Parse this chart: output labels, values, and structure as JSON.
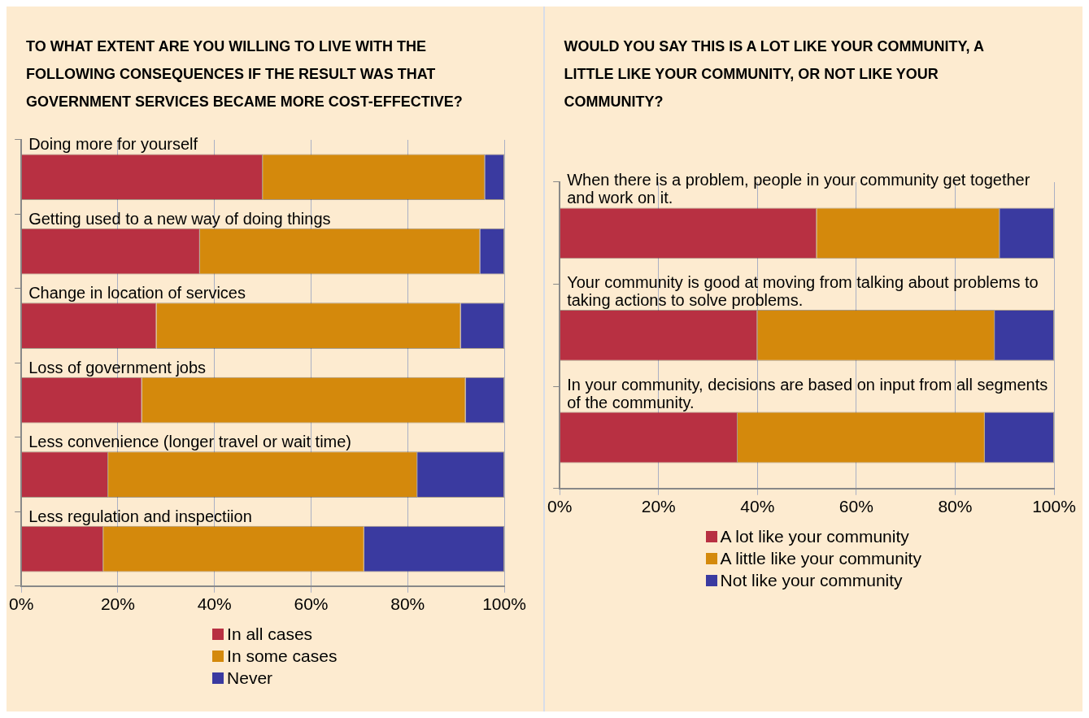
{
  "chart_data": [
    {
      "type": "bar",
      "orientation": "horizontal",
      "stacked": true,
      "title": "TO WHAT EXTENT ARE YOU WILLING TO LIVE WITH THE FOLLOWING CONSEQUENCES IF THE RESULT WAS THAT GOVERNMENT SERVICES BECAME MORE COST-EFFECTIVE?",
      "categories": [
        "Doing more for yourself",
        "Getting used to a new way of doing things",
        "Change in location of services",
        "Loss of government jobs",
        "Less convenience (longer travel or wait time)",
        "Less regulation and inspectiion"
      ],
      "series": [
        {
          "name": "In all cases",
          "color": "#b83042",
          "values": [
            50,
            37,
            28,
            25,
            18,
            17
          ]
        },
        {
          "name": "In some cases",
          "color": "#d4890c",
          "values": [
            46,
            58,
            63,
            67,
            64,
            54
          ]
        },
        {
          "name": "Never",
          "color": "#3a3aa0",
          "values": [
            4,
            5,
            9,
            8,
            18,
            29
          ]
        }
      ],
      "xlim": [
        0,
        100
      ],
      "xticks": [
        {
          "value": 0,
          "label": "0%"
        },
        {
          "value": 20,
          "label": "20%"
        },
        {
          "value": 40,
          "label": "40%"
        },
        {
          "value": 60,
          "label": "60%"
        },
        {
          "value": 80,
          "label": "80%"
        },
        {
          "value": 100,
          "label": "100%"
        }
      ],
      "grid": "x",
      "legend": "bottom"
    },
    {
      "type": "bar",
      "orientation": "horizontal",
      "stacked": true,
      "title": "WOULD YOU SAY THIS IS A LOT LIKE YOUR COMMUNITY, A LITTLE LIKE YOUR COMMUNITY, OR NOT LIKE YOUR COMMUNITY?",
      "categories": [
        "When there is a problem, people in your community get together and work on it.",
        "Your community is good at moving from talking about problems to taking actions to solve problems.",
        "In your community, decisions are based on input from all segments of the community."
      ],
      "series": [
        {
          "name": "A lot like your community",
          "color": "#b83042",
          "values": [
            52,
            40,
            36
          ]
        },
        {
          "name": "A little like your community",
          "color": "#d4890c",
          "values": [
            37,
            48,
            50
          ]
        },
        {
          "name": "Not like your community",
          "color": "#3a3aa0",
          "values": [
            11,
            12,
            14
          ]
        }
      ],
      "xlim": [
        0,
        100
      ],
      "xticks": [
        {
          "value": 0,
          "label": "0%"
        },
        {
          "value": 20,
          "label": "20%"
        },
        {
          "value": 40,
          "label": "40%"
        },
        {
          "value": 60,
          "label": "60%"
        },
        {
          "value": 80,
          "label": "80%"
        },
        {
          "value": 100,
          "label": "100%"
        }
      ],
      "grid": "x",
      "legend": "bottom"
    }
  ]
}
